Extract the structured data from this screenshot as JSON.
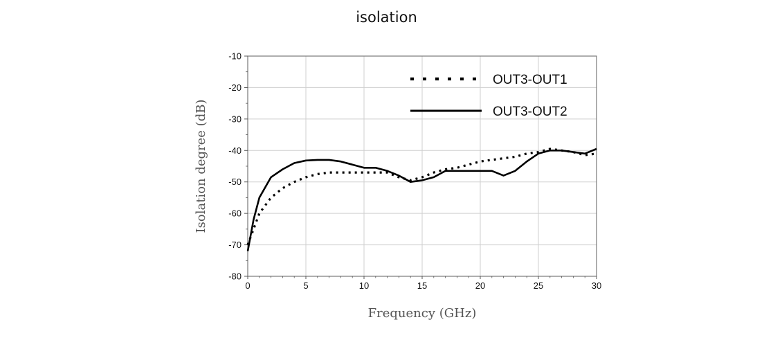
{
  "title": "isolation",
  "chart_data": {
    "type": "line",
    "title": "isolation",
    "xlabel": "Frequency (GHz)",
    "ylabel": "Isolation degree (dB)",
    "xlim": [
      0,
      30
    ],
    "ylim": [
      -80,
      -10
    ],
    "xticks": [
      0,
      5,
      10,
      15,
      20,
      25,
      30
    ],
    "yticks": [
      -10,
      -20,
      -30,
      -40,
      -50,
      -60,
      -70,
      -80
    ],
    "grid": true,
    "legend_position": "top-right",
    "series": [
      {
        "name": "OUT3-OUT1",
        "style": "dotted",
        "color": "#000000",
        "x": [
          0,
          0.5,
          1,
          2,
          3,
          4,
          5,
          6,
          7,
          8,
          9,
          10,
          11,
          12,
          13,
          14,
          15,
          16,
          17,
          18,
          19,
          20,
          21,
          22,
          23,
          24,
          25,
          26,
          27,
          28,
          29,
          30
        ],
        "y": [
          -70,
          -65,
          -60,
          -55,
          -52,
          -50,
          -48.5,
          -47.5,
          -47,
          -47,
          -47,
          -47,
          -47,
          -47,
          -48.5,
          -49.5,
          -48.5,
          -47,
          -46,
          -45.5,
          -44.5,
          -43.5,
          -43,
          -42.5,
          -42,
          -41,
          -40.5,
          -39.5,
          -40,
          -40.5,
          -41.5,
          -41
        ]
      },
      {
        "name": "OUT3-OUT2",
        "style": "solid",
        "color": "#000000",
        "x": [
          0,
          0.5,
          1,
          2,
          3,
          4,
          5,
          6,
          7,
          8,
          9,
          10,
          11,
          12,
          13,
          14,
          15,
          16,
          17,
          18,
          19,
          20,
          21,
          22,
          23,
          24,
          25,
          26,
          27,
          28,
          29,
          30
        ],
        "y": [
          -72,
          -62,
          -55,
          -48.5,
          -46,
          -44,
          -43.2,
          -43,
          -43,
          -43.5,
          -44.5,
          -45.5,
          -45.5,
          -46.5,
          -48,
          -50,
          -49.5,
          -48.5,
          -46.5,
          -46.5,
          -46.5,
          -46.5,
          -46.5,
          -48,
          -46.5,
          -43.5,
          -41,
          -40,
          -40,
          -40.5,
          -41,
          -39.5
        ]
      }
    ]
  }
}
